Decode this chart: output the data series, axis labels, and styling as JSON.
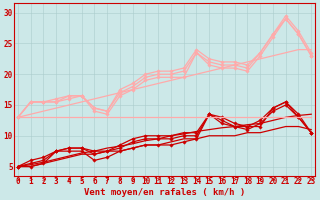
{
  "bg_color": "#cce8e8",
  "grid_color": "#aacccc",
  "xlabel": "Vent moyen/en rafales ( km/h )",
  "xlabel_color": "#cc0000",
  "xlabel_fontsize": 6.5,
  "tick_color": "#cc0000",
  "tick_fontsize": 5.5,
  "x_values": [
    0,
    1,
    2,
    3,
    4,
    5,
    6,
    7,
    8,
    9,
    10,
    11,
    12,
    13,
    14,
    15,
    16,
    17,
    18,
    19,
    20,
    21,
    22,
    23
  ],
  "lines": [
    {
      "y": [
        5.0,
        5.0,
        5.5,
        6.0,
        6.5,
        7.0,
        7.0,
        7.5,
        7.5,
        8.0,
        8.5,
        8.5,
        9.0,
        9.5,
        9.5,
        10.0,
        10.0,
        10.0,
        10.5,
        10.5,
        11.0,
        11.5,
        11.5,
        11.0
      ],
      "color": "#cc0000",
      "lw": 0.9,
      "marker": null,
      "alpha": 1.0
    },
    {
      "y": [
        5.0,
        5.3,
        5.7,
        6.2,
        6.7,
        7.2,
        7.5,
        8.0,
        8.3,
        8.7,
        9.2,
        9.5,
        10.0,
        10.3,
        10.7,
        11.0,
        11.3,
        11.5,
        11.8,
        12.0,
        12.5,
        13.0,
        13.3,
        13.5
      ],
      "color": "#cc0000",
      "lw": 0.9,
      "marker": null,
      "alpha": 1.0
    },
    {
      "y": [
        5.0,
        5.0,
        5.5,
        7.5,
        7.5,
        7.5,
        6.0,
        6.5,
        7.5,
        8.0,
        8.5,
        8.5,
        8.5,
        9.0,
        9.5,
        13.5,
        12.0,
        11.5,
        11.5,
        11.5,
        14.5,
        15.5,
        13.0,
        10.5
      ],
      "color": "#cc0000",
      "lw": 0.9,
      "marker": "D",
      "markersize": 1.8,
      "alpha": 1.0
    },
    {
      "y": [
        5.0,
        5.5,
        6.0,
        7.5,
        8.0,
        8.0,
        7.0,
        7.5,
        8.0,
        9.0,
        9.5,
        9.5,
        9.5,
        10.0,
        10.0,
        13.5,
        12.5,
        11.5,
        11.0,
        12.0,
        14.0,
        15.0,
        13.0,
        10.5
      ],
      "color": "#cc0000",
      "lw": 0.9,
      "marker": "D",
      "markersize": 1.8,
      "alpha": 1.0
    },
    {
      "y": [
        5.0,
        6.0,
        6.5,
        7.5,
        8.0,
        8.0,
        7.5,
        7.5,
        8.5,
        9.5,
        10.0,
        10.0,
        10.0,
        10.5,
        10.5,
        13.5,
        13.0,
        12.0,
        11.5,
        12.5,
        14.5,
        15.5,
        13.5,
        10.5
      ],
      "color": "#cc0000",
      "lw": 0.9,
      "marker": "D",
      "markersize": 1.8,
      "alpha": 1.0
    },
    {
      "y": [
        13.0,
        13.0,
        13.0,
        13.0,
        13.0,
        13.0,
        13.0,
        13.0,
        13.0,
        13.0,
        13.0,
        13.0,
        13.0,
        13.0,
        13.0,
        13.0,
        13.0,
        13.0,
        13.0,
        13.0,
        13.0,
        13.0,
        13.0,
        13.0
      ],
      "color": "#ffaaaa",
      "lw": 0.9,
      "marker": null,
      "alpha": 1.0
    },
    {
      "y": [
        13.0,
        13.5,
        14.0,
        14.5,
        15.0,
        15.5,
        16.0,
        16.5,
        17.0,
        17.5,
        18.0,
        18.5,
        19.0,
        19.5,
        20.0,
        20.5,
        21.0,
        21.5,
        22.0,
        22.5,
        23.0,
        23.5,
        24.0,
        24.0
      ],
      "color": "#ffaaaa",
      "lw": 0.9,
      "marker": null,
      "alpha": 1.0
    },
    {
      "y": [
        13.0,
        15.5,
        15.5,
        15.5,
        16.5,
        16.5,
        14.0,
        13.5,
        16.5,
        17.5,
        19.0,
        19.5,
        19.5,
        19.5,
        23.5,
        21.5,
        21.0,
        21.0,
        20.5,
        23.0,
        26.0,
        29.0,
        26.5,
        23.0
      ],
      "color": "#ffaaaa",
      "lw": 0.9,
      "marker": "D",
      "markersize": 1.8,
      "alpha": 1.0
    },
    {
      "y": [
        13.0,
        15.5,
        15.5,
        15.5,
        16.0,
        16.5,
        14.5,
        14.0,
        17.0,
        18.0,
        19.5,
        20.0,
        20.0,
        20.5,
        23.5,
        22.0,
        21.5,
        21.5,
        21.0,
        23.5,
        26.5,
        29.0,
        26.5,
        23.0
      ],
      "color": "#ffaaaa",
      "lw": 0.9,
      "marker": "D",
      "markersize": 1.8,
      "alpha": 1.0
    },
    {
      "y": [
        13.0,
        15.5,
        15.5,
        16.0,
        16.5,
        16.5,
        14.5,
        14.0,
        17.5,
        18.5,
        20.0,
        20.5,
        20.5,
        21.0,
        24.0,
        22.5,
        22.0,
        22.0,
        21.5,
        23.5,
        26.5,
        29.5,
        27.0,
        23.5
      ],
      "color": "#ffaaaa",
      "lw": 0.9,
      "marker": "D",
      "markersize": 1.8,
      "alpha": 1.0
    }
  ],
  "yticks": [
    5,
    10,
    15,
    20,
    25,
    30
  ],
  "ylim": [
    3.5,
    31.5
  ],
  "xlim": [
    -0.3,
    23.3
  ],
  "tick_fontsize_y": 5.5
}
